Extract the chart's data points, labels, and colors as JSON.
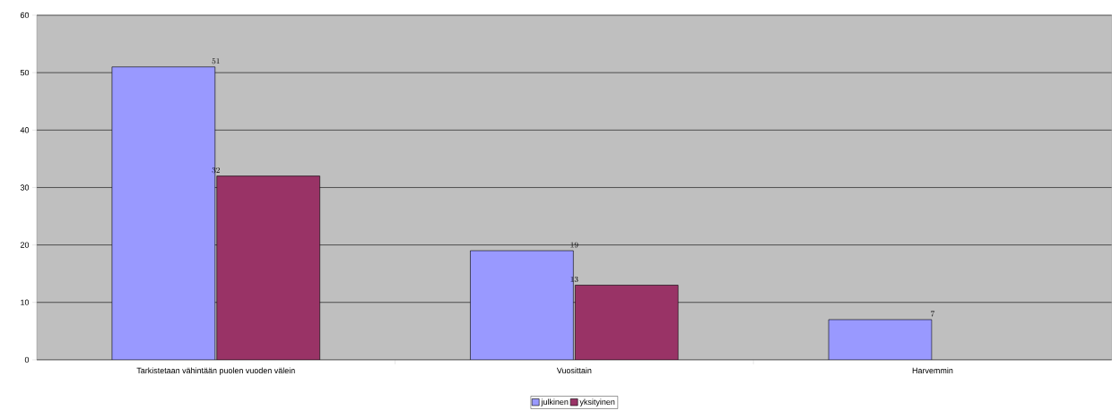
{
  "chart_data": {
    "type": "bar",
    "categories": [
      "Tarkistetaan vähintään puolen vuoden välein",
      "Vuosittain",
      "Harvemmin"
    ],
    "series": [
      {
        "name": "julkinen",
        "color": "#9999ff",
        "values": [
          51,
          19,
          7
        ]
      },
      {
        "name": "yksityinen",
        "color": "#993366",
        "values": [
          32,
          13,
          null
        ]
      }
    ],
    "ylim": [
      0,
      60
    ],
    "yticks": [
      0,
      10,
      20,
      30,
      40,
      50,
      60
    ],
    "grid": "y",
    "legend": "bottom",
    "data_labels": true
  }
}
